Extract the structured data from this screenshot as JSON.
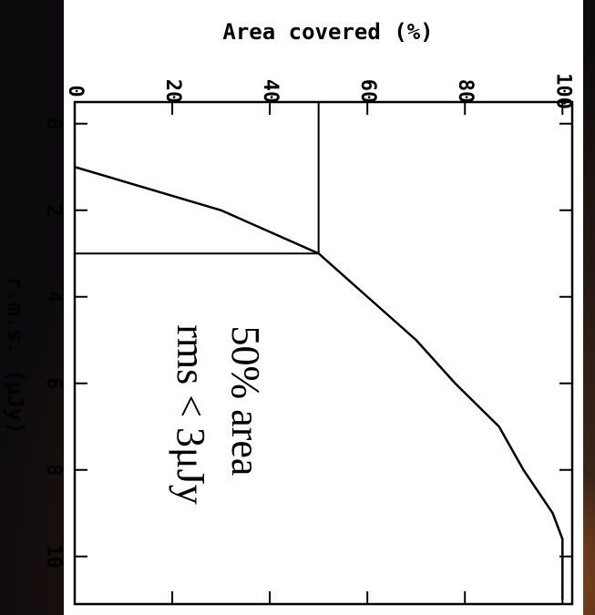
{
  "chart_data": {
    "type": "line",
    "xlabel": "r.m.s. (μJy)",
    "ylabel": "Area covered (%)",
    "xlim": [
      -0.5,
      11.1
    ],
    "ylim": [
      0,
      102
    ],
    "xticks": [
      0,
      2,
      4,
      6,
      8,
      10
    ],
    "yticks": [
      0,
      20,
      40,
      60,
      80,
      100
    ],
    "series": [
      {
        "color": "#000000",
        "x": [
          1,
          2,
          2.5,
          3,
          4,
          5,
          6,
          7,
          8,
          9,
          9.6,
          11
        ],
        "values": [
          0,
          30,
          40,
          50,
          60,
          70,
          78,
          87,
          92,
          98,
          100,
          100
        ]
      }
    ],
    "guides": [
      {
        "x": 3,
        "y": 50
      }
    ],
    "annotations": [
      "50% area",
      "rms < 3μJy"
    ]
  }
}
